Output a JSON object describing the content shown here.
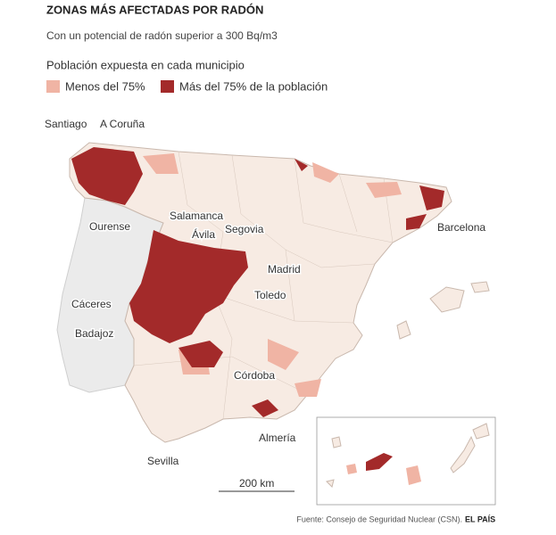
{
  "header": {
    "title": "ZONAS MÁS AFECTADAS POR RADÓN",
    "subtitle": "Con un potencial de radón superior a 300 Bq/m3"
  },
  "legend": {
    "title": "Población expuesta en cada municipio",
    "items": [
      "Menos del 75%",
      "Más del 75% de la población"
    ]
  },
  "labels": [
    "Santiago",
    "A Coruña",
    "Ourense",
    "Salamanca",
    "Ávila",
    "Segovia",
    "Madrid",
    "Toledo",
    "Cáceres",
    "Badajoz",
    "Córdoba",
    "Sevilla",
    "Almería",
    "Barcelona"
  ],
  "scale": "200 km",
  "source": {
    "text": "Fuente: Consejo de Seguridad Nuclear (CSN).",
    "brand": "EL PAÍS"
  }
}
